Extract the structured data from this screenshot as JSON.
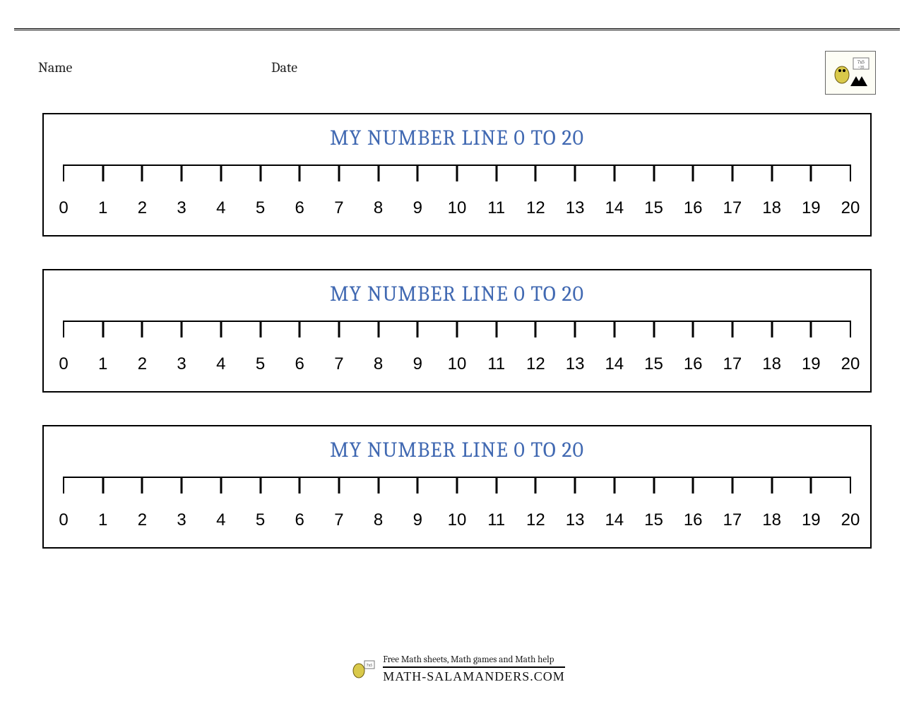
{
  "header": {
    "name_label": "Name",
    "date_label": "Date"
  },
  "card_title": "MY NUMBER LINE 0 TO 20",
  "title_color": "#4169b2",
  "number_line": {
    "min": 0,
    "max": 20,
    "step": 1,
    "labels": [
      "0",
      "1",
      "2",
      "3",
      "4",
      "5",
      "6",
      "7",
      "8",
      "9",
      "10",
      "11",
      "12",
      "13",
      "14",
      "15",
      "16",
      "17",
      "18",
      "19",
      "20"
    ],
    "tick_color": "#000000",
    "axis_color": "#000000",
    "label_color": "#000000",
    "label_fontsize": 24,
    "font_family": "Comic Sans MS, Verdana, sans-serif"
  },
  "card_count": 3,
  "footer": {
    "tagline": "Free Math sheets, Math games and Math help",
    "brand": "MATH-SALAMANDERS.COM"
  },
  "colors": {
    "background": "#ffffff",
    "border": "#000000",
    "title": "#4169b2"
  }
}
